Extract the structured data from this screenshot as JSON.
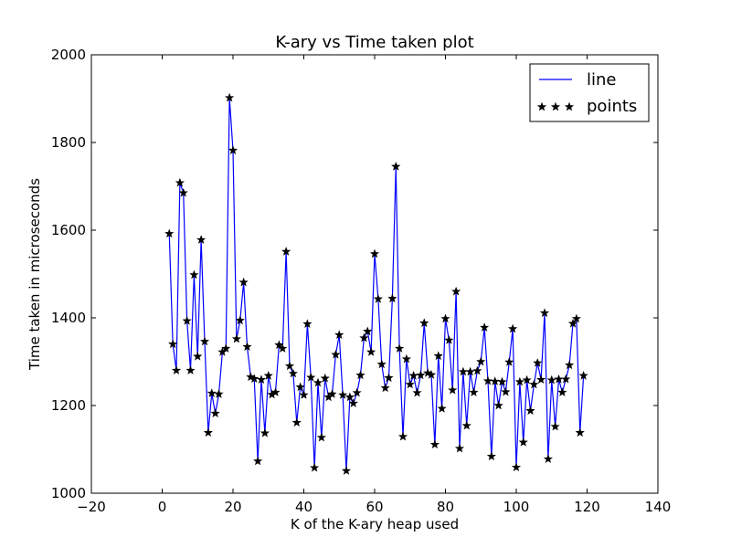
{
  "chart_data": {
    "type": "line",
    "title": "K-ary vs Time taken plot",
    "xlabel": "K of the K-ary heap used",
    "ylabel": "Time taken in microseconds",
    "xlim": [
      -20,
      140
    ],
    "ylim": [
      1000,
      2000
    ],
    "xticks": [
      -20,
      0,
      20,
      40,
      60,
      80,
      100,
      120,
      140
    ],
    "yticks": [
      1000,
      1200,
      1400,
      1600,
      1800,
      2000
    ],
    "xtick_labels": [
      "−20",
      "0",
      "20",
      "40",
      "60",
      "80",
      "100",
      "120",
      "140"
    ],
    "ytick_labels": [
      "1000",
      "1200",
      "1400",
      "1600",
      "1800",
      "2000"
    ],
    "grid": false,
    "legend_position": "top-right",
    "series": [
      {
        "name": "line",
        "style": "line",
        "color": "#0000ff",
        "x": [
          2,
          3,
          4,
          5,
          6,
          7,
          8,
          9,
          10,
          11,
          12,
          13,
          14,
          15,
          16,
          17,
          18,
          19,
          20,
          21,
          22,
          23,
          24,
          25,
          26,
          27,
          28,
          29,
          30,
          31,
          32,
          33,
          34,
          35,
          36,
          37,
          38,
          39,
          40,
          41,
          42,
          43,
          44,
          45,
          46,
          47,
          48,
          49,
          50,
          51,
          52,
          53,
          54,
          55,
          56,
          57,
          58,
          59,
          60,
          61,
          62,
          63,
          64,
          65,
          66,
          67,
          68,
          69,
          70,
          71,
          72,
          73,
          74,
          75,
          76,
          77,
          78,
          79,
          80,
          81,
          82,
          83,
          84,
          85,
          86,
          87,
          88,
          89,
          90,
          91,
          92,
          93,
          94,
          95,
          96,
          97,
          98,
          99,
          100,
          101,
          102,
          103,
          104,
          105,
          106,
          107,
          108,
          109,
          110,
          111,
          112,
          113,
          114,
          115,
          116,
          117,
          118,
          119
        ],
        "y": [
          1592,
          1340,
          1280,
          1708,
          1685,
          1393,
          1280,
          1498,
          1312,
          1578,
          1346,
          1138,
          1228,
          1182,
          1226,
          1322,
          1330,
          1902,
          1782,
          1352,
          1394,
          1481,
          1334,
          1265,
          1261,
          1073,
          1259,
          1137,
          1268,
          1225,
          1230,
          1338,
          1330,
          1551,
          1290,
          1273,
          1161,
          1242,
          1224,
          1386,
          1264,
          1058,
          1252,
          1127,
          1262,
          1219,
          1226,
          1316,
          1361,
          1224,
          1051,
          1219,
          1205,
          1229,
          1269,
          1354,
          1369,
          1322,
          1546,
          1443,
          1294,
          1240,
          1263,
          1444,
          1745,
          1330,
          1129,
          1306,
          1248,
          1268,
          1229,
          1269,
          1388,
          1274,
          1270,
          1111,
          1313,
          1193,
          1398,
          1349,
          1235,
          1460,
          1102,
          1277,
          1154,
          1277,
          1230,
          1279,
          1300,
          1378,
          1256,
          1084,
          1255,
          1200,
          1254,
          1231,
          1299,
          1375,
          1059,
          1254,
          1116,
          1258,
          1188,
          1248,
          1297,
          1259,
          1411,
          1078,
          1258,
          1152,
          1260,
          1230,
          1260,
          1292,
          1387,
          1398,
          1138,
          1268
        ]
      },
      {
        "name": "points",
        "style": "markers",
        "marker": "star",
        "color": "#000000",
        "x": [
          2,
          3,
          4,
          5,
          6,
          7,
          8,
          9,
          10,
          11,
          12,
          13,
          14,
          15,
          16,
          17,
          18,
          19,
          20,
          21,
          22,
          23,
          24,
          25,
          26,
          27,
          28,
          29,
          30,
          31,
          32,
          33,
          34,
          35,
          36,
          37,
          38,
          39,
          40,
          41,
          42,
          43,
          44,
          45,
          46,
          47,
          48,
          49,
          50,
          51,
          52,
          53,
          54,
          55,
          56,
          57,
          58,
          59,
          60,
          61,
          62,
          63,
          64,
          65,
          66,
          67,
          68,
          69,
          70,
          71,
          72,
          73,
          74,
          75,
          76,
          77,
          78,
          79,
          80,
          81,
          82,
          83,
          84,
          85,
          86,
          87,
          88,
          89,
          90,
          91,
          92,
          93,
          94,
          95,
          96,
          97,
          98,
          99,
          100,
          101,
          102,
          103,
          104,
          105,
          106,
          107,
          108,
          109,
          110,
          111,
          112,
          113,
          114,
          115,
          116,
          117,
          118,
          119
        ],
        "y": [
          1592,
          1340,
          1280,
          1708,
          1685,
          1393,
          1280,
          1498,
          1312,
          1578,
          1346,
          1138,
          1228,
          1182,
          1226,
          1322,
          1330,
          1902,
          1782,
          1352,
          1394,
          1481,
          1334,
          1265,
          1261,
          1073,
          1259,
          1137,
          1268,
          1225,
          1230,
          1338,
          1330,
          1551,
          1290,
          1273,
          1161,
          1242,
          1224,
          1386,
          1264,
          1058,
          1252,
          1127,
          1262,
          1219,
          1226,
          1316,
          1361,
          1224,
          1051,
          1219,
          1205,
          1229,
          1269,
          1354,
          1369,
          1322,
          1546,
          1443,
          1294,
          1240,
          1263,
          1444,
          1745,
          1330,
          1129,
          1306,
          1248,
          1268,
          1229,
          1269,
          1388,
          1274,
          1270,
          1111,
          1313,
          1193,
          1398,
          1349,
          1235,
          1460,
          1102,
          1277,
          1154,
          1277,
          1230,
          1279,
          1300,
          1378,
          1256,
          1084,
          1255,
          1200,
          1254,
          1231,
          1299,
          1375,
          1059,
          1254,
          1116,
          1258,
          1188,
          1248,
          1297,
          1259,
          1411,
          1078,
          1258,
          1152,
          1260,
          1230,
          1260,
          1292,
          1387,
          1398,
          1138,
          1268
        ]
      }
    ]
  }
}
